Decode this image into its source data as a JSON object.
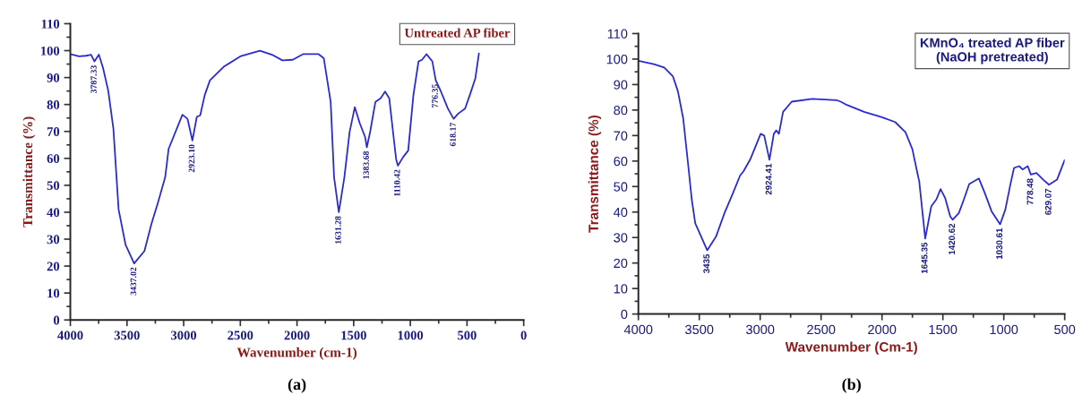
{
  "chart_data": [
    {
      "type": "line",
      "title": "Untreated AP fiber",
      "xlabel": "Wavenumber (cm-1)",
      "ylabel": "Transmittance (%)",
      "xlim": [
        4000,
        0
      ],
      "xticks": [
        4000,
        3500,
        3000,
        2500,
        2000,
        1500,
        1000,
        500,
        0
      ],
      "ylim": [
        0,
        110
      ],
      "yticks": [
        0,
        10,
        20,
        30,
        40,
        50,
        60,
        70,
        80,
        90,
        100,
        110
      ],
      "grid": false,
      "legend": false,
      "marker": "none",
      "line_style": "solid",
      "series": [
        {
          "color": "#2b2bd0",
          "x": [
            4000,
            3924,
            3863,
            3817,
            3787,
            3748,
            3711,
            3665,
            3620,
            3574,
            3513,
            3437,
            3346,
            3285,
            3224,
            3163,
            3133,
            3011,
            2966,
            2923,
            2884,
            2854,
            2814,
            2768,
            2647,
            2494,
            2327,
            2221,
            2129,
            2038,
            1947,
            1810,
            1764,
            1703,
            1673,
            1631,
            1582,
            1536,
            1490,
            1445,
            1399,
            1384,
            1354,
            1308,
            1262,
            1223,
            1186,
            1156,
            1126,
            1110,
            1065,
            1019,
            973,
            928,
            897,
            858,
            806,
            776,
            730,
            669,
            618,
            578,
            517,
            471,
            426,
            395
          ],
          "values": [
            98.7,
            97.9,
            98.1,
            98.5,
            96,
            98.5,
            93.5,
            85,
            71,
            41,
            28,
            21,
            25.6,
            35.6,
            44,
            53,
            63.5,
            76.2,
            74.7,
            66.6,
            75.4,
            76,
            83.5,
            89,
            94,
            98,
            100,
            98.5,
            96.4,
            96.6,
            98.7,
            98.7,
            97.2,
            81,
            53,
            40,
            53,
            69.8,
            79,
            72.9,
            67.9,
            64.1,
            70,
            81,
            82.3,
            84.8,
            82.3,
            71,
            59.8,
            57.3,
            60.4,
            62.9,
            83.5,
            96,
            96.6,
            98.7,
            96,
            89,
            84.8,
            78.5,
            74.7,
            76.6,
            78.5,
            84,
            89.8,
            99
          ]
        }
      ],
      "annotations": [
        {
          "text": "3787.33",
          "x": 3787.33,
          "y": 96
        },
        {
          "text": "3437.02",
          "x": 3437.02,
          "y": 21
        },
        {
          "text": "2923.10",
          "x": 2923.1,
          "y": 66.6
        },
        {
          "text": "1631.28",
          "x": 1631.28,
          "y": 40
        },
        {
          "text": "1383.68",
          "x": 1383.68,
          "y": 64.1
        },
        {
          "text": "1110.42",
          "x": 1110.42,
          "y": 57.3
        },
        {
          "text": "776.35",
          "x": 776.35,
          "y": 89
        },
        {
          "text": "618.17",
          "x": 618.17,
          "y": 74.7
        },
        "(a)"
      ]
    },
    {
      "type": "line",
      "title": "KMnO₄ treated AP fiber\n(NaOH pretreated)",
      "xlabel": "Wavenumber (Cm-1)",
      "ylabel": "Transmittance (%)",
      "xlim": [
        4000,
        500
      ],
      "xticks": [
        4000,
        3500,
        3000,
        2500,
        2000,
        1500,
        1000,
        500
      ],
      "ylim": [
        0,
        110
      ],
      "yticks": [
        0,
        10,
        20,
        30,
        40,
        50,
        60,
        70,
        80,
        90,
        100,
        110
      ],
      "grid": false,
      "legend": false,
      "marker": "none",
      "line_style": "solid",
      "series": [
        {
          "color": "#2b2bd0",
          "x": [
            4000,
            3873,
            3788,
            3717,
            3675,
            3632,
            3590,
            3562,
            3533,
            3435,
            3363,
            3293,
            3222,
            3165,
            3137,
            3081,
            2996,
            2967,
            2924,
            2888,
            2868,
            2846,
            2812,
            2741,
            2571,
            2373,
            2339,
            2288,
            2147,
            2006,
            1892,
            1807,
            1751,
            1708,
            1694,
            1645,
            1595,
            1553,
            1519,
            1482,
            1440,
            1420,
            1369,
            1327,
            1284,
            1205,
            1157,
            1100,
            1030,
            987,
            945,
            916,
            874,
            846,
            803,
            778,
            732,
            676,
            629,
            563,
            500
          ],
          "values": [
            99.3,
            98,
            96.7,
            93.3,
            87.3,
            76.7,
            58,
            45,
            35.6,
            25,
            30.3,
            39.6,
            47.6,
            54.3,
            56,
            60.7,
            70.7,
            70,
            60.5,
            70.7,
            72,
            70.7,
            79.3,
            83.3,
            84.4,
            83.9,
            83.3,
            82,
            79.3,
            77.3,
            75.3,
            71.3,
            64.7,
            55,
            52,
            29.6,
            42.3,
            45,
            49,
            45.6,
            38.3,
            37,
            39.6,
            45,
            51,
            53.2,
            47.6,
            40.3,
            35.2,
            41,
            51,
            57.3,
            58,
            56.7,
            58,
            54.7,
            55.3,
            52.7,
            50.7,
            52.7,
            60.4
          ]
        }
      ],
      "annotations": [
        {
          "text": "3435",
          "x": 3435,
          "y": 25
        },
        {
          "text": "2924.41",
          "x": 2924.41,
          "y": 60.5
        },
        {
          "text": "1645.35",
          "x": 1645.35,
          "y": 29.6
        },
        {
          "text": "1420.62",
          "x": 1420.62,
          "y": 37
        },
        {
          "text": "1030.61",
          "x": 1030.61,
          "y": 35.2
        },
        {
          "text": "778.48",
          "x": 778.48,
          "y": 54.7
        },
        {
          "text": "629.07",
          "x": 629.07,
          "y": 50.7
        },
        "(b)"
      ]
    }
  ]
}
